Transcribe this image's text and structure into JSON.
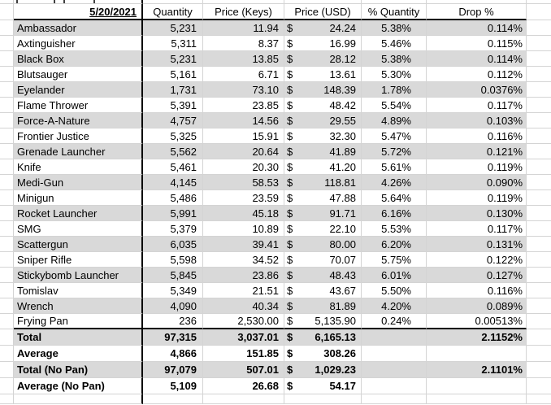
{
  "header": {
    "date_label": "5/20/2021",
    "columns": [
      "Quantity",
      "Price (Keys)",
      "Price (USD)",
      "% Quantity",
      "Drop %"
    ]
  },
  "currency_symbol": "$",
  "rows": [
    {
      "name": "Ambassador",
      "quantity": "5,231",
      "price_keys": "11.94",
      "price_usd": "24.24",
      "pct_quantity": "5.38%",
      "drop_pct": "0.114%"
    },
    {
      "name": "Axtinguisher",
      "quantity": "5,311",
      "price_keys": "8.37",
      "price_usd": "16.99",
      "pct_quantity": "5.46%",
      "drop_pct": "0.115%"
    },
    {
      "name": "Black Box",
      "quantity": "5,231",
      "price_keys": "13.85",
      "price_usd": "28.12",
      "pct_quantity": "5.38%",
      "drop_pct": "0.114%"
    },
    {
      "name": "Blutsauger",
      "quantity": "5,161",
      "price_keys": "6.71",
      "price_usd": "13.61",
      "pct_quantity": "5.30%",
      "drop_pct": "0.112%"
    },
    {
      "name": "Eyelander",
      "quantity": "1,731",
      "price_keys": "73.10",
      "price_usd": "148.39",
      "pct_quantity": "1.78%",
      "drop_pct": "0.0376%"
    },
    {
      "name": "Flame Thrower",
      "quantity": "5,391",
      "price_keys": "23.85",
      "price_usd": "48.42",
      "pct_quantity": "5.54%",
      "drop_pct": "0.117%"
    },
    {
      "name": "Force-A-Nature",
      "quantity": "4,757",
      "price_keys": "14.56",
      "price_usd": "29.55",
      "pct_quantity": "4.89%",
      "drop_pct": "0.103%"
    },
    {
      "name": "Frontier Justice",
      "quantity": "5,325",
      "price_keys": "15.91",
      "price_usd": "32.30",
      "pct_quantity": "5.47%",
      "drop_pct": "0.116%"
    },
    {
      "name": "Grenade Launcher",
      "quantity": "5,562",
      "price_keys": "20.64",
      "price_usd": "41.89",
      "pct_quantity": "5.72%",
      "drop_pct": "0.121%"
    },
    {
      "name": "Knife",
      "quantity": "5,461",
      "price_keys": "20.30",
      "price_usd": "41.20",
      "pct_quantity": "5.61%",
      "drop_pct": "0.119%"
    },
    {
      "name": "Medi-Gun",
      "quantity": "4,145",
      "price_keys": "58.53",
      "price_usd": "118.81",
      "pct_quantity": "4.26%",
      "drop_pct": "0.090%"
    },
    {
      "name": "Minigun",
      "quantity": "5,486",
      "price_keys": "23.59",
      "price_usd": "47.88",
      "pct_quantity": "5.64%",
      "drop_pct": "0.119%"
    },
    {
      "name": "Rocket Launcher",
      "quantity": "5,991",
      "price_keys": "45.18",
      "price_usd": "91.71",
      "pct_quantity": "6.16%",
      "drop_pct": "0.130%"
    },
    {
      "name": "SMG",
      "quantity": "5,379",
      "price_keys": "10.89",
      "price_usd": "22.10",
      "pct_quantity": "5.53%",
      "drop_pct": "0.117%"
    },
    {
      "name": "Scattergun",
      "quantity": "6,035",
      "price_keys": "39.41",
      "price_usd": "80.00",
      "pct_quantity": "6.20%",
      "drop_pct": "0.131%"
    },
    {
      "name": "Sniper Rifle",
      "quantity": "5,598",
      "price_keys": "34.52",
      "price_usd": "70.07",
      "pct_quantity": "5.75%",
      "drop_pct": "0.122%"
    },
    {
      "name": "Stickybomb Launcher",
      "quantity": "5,845",
      "price_keys": "23.86",
      "price_usd": "48.43",
      "pct_quantity": "6.01%",
      "drop_pct": "0.127%"
    },
    {
      "name": "Tomislav",
      "quantity": "5,349",
      "price_keys": "21.51",
      "price_usd": "43.67",
      "pct_quantity": "5.50%",
      "drop_pct": "0.116%"
    },
    {
      "name": "Wrench",
      "quantity": "4,090",
      "price_keys": "40.34",
      "price_usd": "81.89",
      "pct_quantity": "4.20%",
      "drop_pct": "0.089%"
    },
    {
      "name": "Frying Pan",
      "quantity": "236",
      "price_keys": "2,530.00",
      "price_usd": "5,135.90",
      "pct_quantity": "0.24%",
      "drop_pct": "0.00513%"
    }
  ],
  "summary_rows": [
    {
      "name": "Total",
      "quantity": "97,315",
      "price_keys": "3,037.01",
      "price_usd": "6,165.13",
      "pct_quantity": "",
      "drop_pct": "2.1152%"
    },
    {
      "name": "Average",
      "quantity": "4,866",
      "price_keys": "151.85",
      "price_usd": "308.26",
      "pct_quantity": "",
      "drop_pct": ""
    },
    {
      "name": "Total (No Pan)",
      "quantity": "97,079",
      "price_keys": "507.01",
      "price_usd": "1,029.23",
      "pct_quantity": "",
      "drop_pct": "2.1101%"
    },
    {
      "name": "Average (No Pan)",
      "quantity": "5,109",
      "price_keys": "26.68",
      "price_usd": "54.17",
      "pct_quantity": "",
      "drop_pct": ""
    }
  ],
  "colors": {
    "band": "#d9d9d9",
    "gridline": "#d4d4d4",
    "border": "#000000"
  }
}
